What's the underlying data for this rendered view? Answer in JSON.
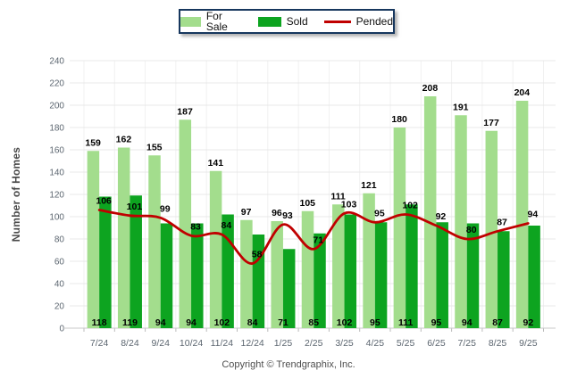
{
  "legend": {
    "items": [
      {
        "label": "For Sale",
        "color": "#A3DD8D",
        "marker": "swatch"
      },
      {
        "label": "Sold",
        "color": "#0DA420",
        "marker": "swatch"
      },
      {
        "label": "Pended",
        "color": "#C00000",
        "marker": "line"
      }
    ]
  },
  "footer": {
    "copyright": "Copyright © Trendgraphix, Inc."
  },
  "colors": {
    "for_sale": "#A3DD8D",
    "sold": "#0DA420",
    "pended": "#C00000",
    "gridline": "#E8E8E8",
    "vertical_gridline": "#F1F1F1",
    "axis_line": "#C9C9C9",
    "tick": "#BBBBBB",
    "axis_text": "#5C6670",
    "value_label": "#000000"
  },
  "chart_data": {
    "type": "bar",
    "title": "",
    "xlabel": "",
    "ylabel": "Number of Homes",
    "ylim": [
      0,
      240
    ],
    "ytick_step": 20,
    "grid": true,
    "legend_position": "top",
    "categories": [
      "7/24",
      "8/24",
      "9/24",
      "10/24",
      "11/24",
      "12/24",
      "1/25",
      "2/25",
      "3/25",
      "4/25",
      "5/25",
      "6/25",
      "7/25",
      "8/25",
      "9/25"
    ],
    "series": [
      {
        "name": "For Sale",
        "type": "bar",
        "color": "#A3DD8D",
        "values": [
          159,
          162,
          155,
          187,
          141,
          97,
          96,
          105,
          111,
          121,
          180,
          208,
          191,
          177,
          204
        ]
      },
      {
        "name": "Sold",
        "type": "bar",
        "color": "#0DA420",
        "values": [
          118,
          119,
          94,
          94,
          102,
          84,
          71,
          85,
          102,
          95,
          111,
          95,
          94,
          87,
          92
        ]
      },
      {
        "name": "Pended",
        "type": "line",
        "color": "#C00000",
        "values": [
          106,
          101,
          99,
          83,
          84,
          58,
          93,
          71,
          103,
          95,
          102,
          92,
          80,
          87,
          94
        ]
      }
    ]
  }
}
